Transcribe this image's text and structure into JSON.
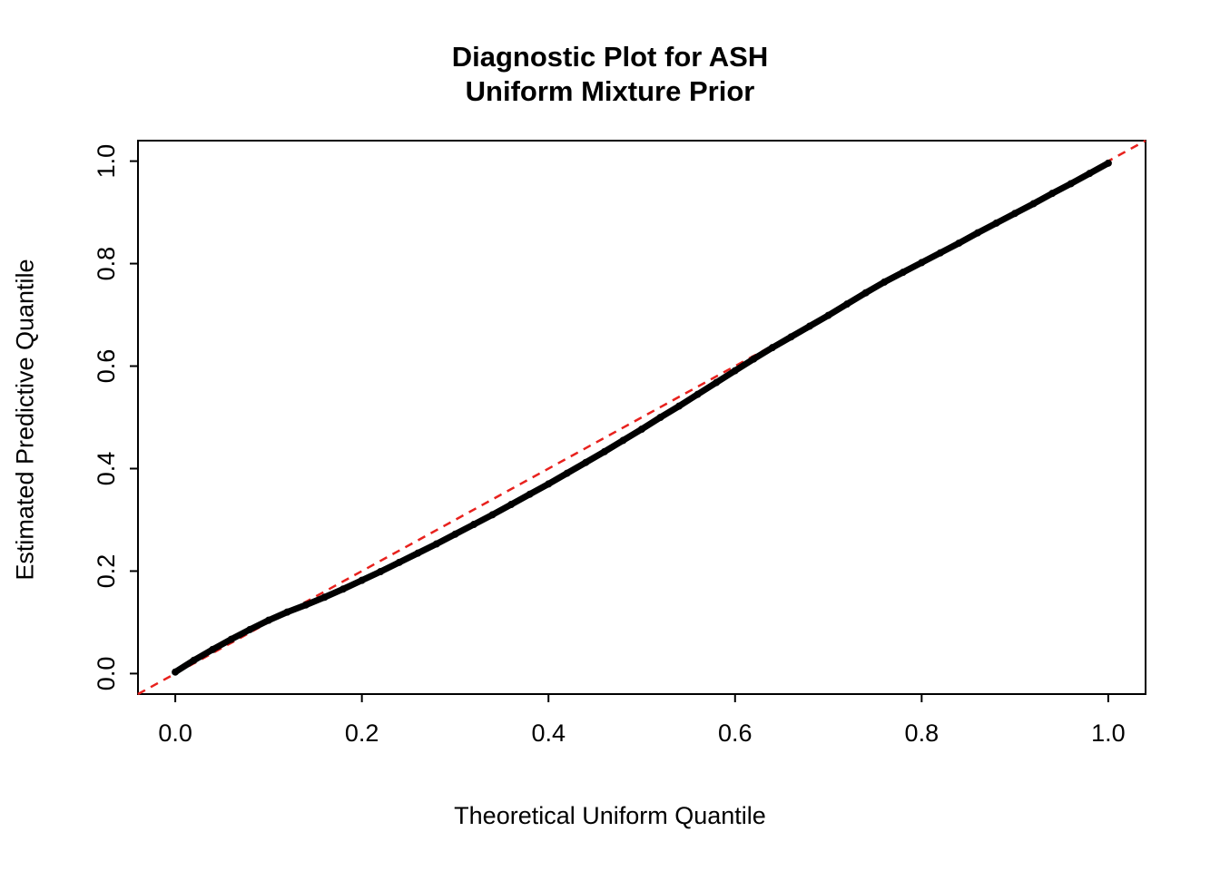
{
  "title": {
    "line1": "Diagnostic Plot for ASH",
    "line2": "Uniform Mixture Prior"
  },
  "chart_data": {
    "type": "scatter",
    "title": "Diagnostic Plot for ASH\nUniform Mixture Prior",
    "xlabel": "Theoretical Uniform Quantile",
    "ylabel": "Estimated Predictive Quantile",
    "xlim": [
      -0.04,
      1.04
    ],
    "ylim": [
      -0.04,
      1.04
    ],
    "xticks": [
      0.0,
      0.2,
      0.4,
      0.6,
      0.8,
      1.0
    ],
    "yticks": [
      0.0,
      0.2,
      0.4,
      0.6,
      0.8,
      1.0
    ],
    "grid": false,
    "legend": "none",
    "colors": {
      "points": "#000000",
      "reference_line": "#e8211d",
      "axis": "#000000"
    },
    "series": [
      {
        "name": "estimated-predictive-quantiles",
        "style": "points",
        "color": "#000000",
        "x": [
          0.0,
          0.02,
          0.04,
          0.06,
          0.08,
          0.1,
          0.12,
          0.14,
          0.16,
          0.18,
          0.2,
          0.22,
          0.24,
          0.26,
          0.28,
          0.3,
          0.32,
          0.34,
          0.36,
          0.38,
          0.4,
          0.42,
          0.44,
          0.46,
          0.48,
          0.5,
          0.52,
          0.54,
          0.56,
          0.58,
          0.6,
          0.62,
          0.64,
          0.66,
          0.68,
          0.7,
          0.72,
          0.74,
          0.76,
          0.78,
          0.8,
          0.82,
          0.84,
          0.86,
          0.88,
          0.9,
          0.92,
          0.94,
          0.96,
          0.98,
          1.0
        ],
        "y": [
          0.003,
          0.026,
          0.047,
          0.067,
          0.086,
          0.104,
          0.12,
          0.134,
          0.149,
          0.165,
          0.182,
          0.199,
          0.217,
          0.235,
          0.253,
          0.272,
          0.291,
          0.31,
          0.33,
          0.35,
          0.37,
          0.391,
          0.412,
          0.433,
          0.455,
          0.477,
          0.5,
          0.522,
          0.545,
          0.568,
          0.591,
          0.614,
          0.636,
          0.657,
          0.678,
          0.699,
          0.721,
          0.743,
          0.764,
          0.783,
          0.802,
          0.821,
          0.84,
          0.86,
          0.879,
          0.898,
          0.917,
          0.937,
          0.956,
          0.976,
          0.996
        ]
      },
      {
        "name": "identity-reference-line",
        "style": "dashed-line",
        "color": "#e8211d",
        "x": [
          -0.04,
          1.04
        ],
        "y": [
          -0.04,
          1.04
        ]
      }
    ]
  }
}
